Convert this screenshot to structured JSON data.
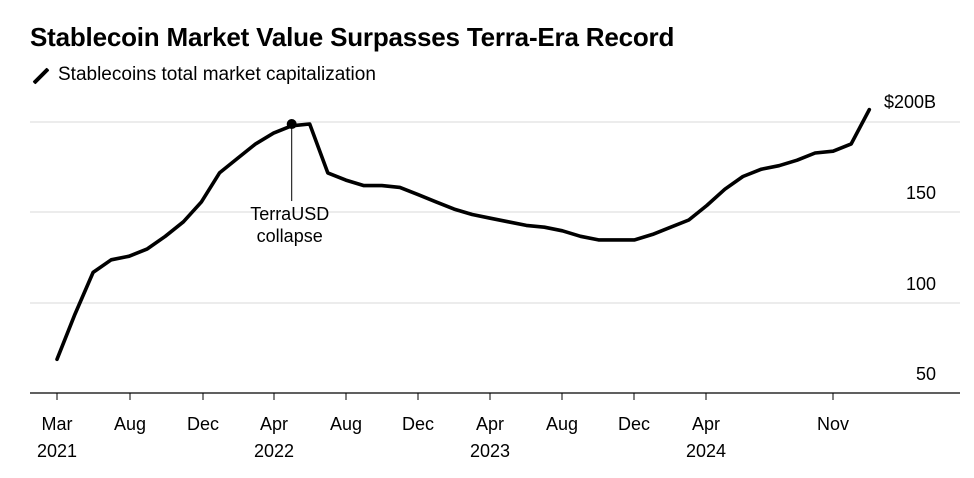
{
  "chart_data": {
    "type": "line",
    "title": "Stablecoin Market Value Surpasses Terra-Era Record",
    "series": [
      {
        "name": "Stablecoins total market capitalization",
        "x": [
          "2021-03",
          "2021-04",
          "2021-05",
          "2021-06",
          "2021-07",
          "2021-08",
          "2021-09",
          "2021-10",
          "2021-11",
          "2021-12",
          "2022-01",
          "2022-02",
          "2022-03",
          "2022-04",
          "2022-05",
          "2022-06",
          "2022-07",
          "2022-08",
          "2022-09",
          "2022-10",
          "2022-11",
          "2022-12",
          "2023-01",
          "2023-02",
          "2023-03",
          "2023-04",
          "2023-05",
          "2023-06",
          "2023-07",
          "2023-08",
          "2023-09",
          "2023-10",
          "2023-11",
          "2023-12",
          "2024-01",
          "2024-02",
          "2024-03",
          "2024-04",
          "2024-05",
          "2024-06",
          "2024-07",
          "2024-08",
          "2024-09",
          "2024-10",
          "2024-11",
          "2024-12"
        ],
        "values": [
          57,
          82,
          105,
          112,
          114,
          118,
          125,
          133,
          144,
          160,
          168,
          176,
          182,
          186,
          187,
          160,
          156,
          153,
          153,
          152,
          148,
          144,
          140,
          137,
          135,
          133,
          131,
          130,
          128,
          125,
          123,
          123,
          123,
          126,
          130,
          134,
          142,
          151,
          158,
          162,
          164,
          167,
          171,
          172,
          176,
          195
        ]
      }
    ],
    "x_tick_labels": [
      "Mar",
      "Aug",
      "Dec",
      "Apr",
      "Aug",
      "Dec",
      "Apr",
      "Aug",
      "Dec",
      "Apr",
      "Nov"
    ],
    "x_year_labels": [
      "2021",
      "2022",
      "2023",
      "2024"
    ],
    "y_tick_labels": [
      "$200B",
      "150",
      "100",
      "50"
    ],
    "y_ticks": [
      200,
      150,
      100,
      50
    ],
    "ylim": [
      40,
      200
    ],
    "annotations": [
      {
        "label_lines": [
          "TerraUSD",
          "collapse"
        ],
        "x": "2022-05",
        "y": 187
      }
    ],
    "legend_label": "Stablecoins total market capitalization",
    "grid": true,
    "colors": {
      "line": "#000000",
      "grid": "#d9d9d9",
      "axis": "#000000"
    }
  }
}
